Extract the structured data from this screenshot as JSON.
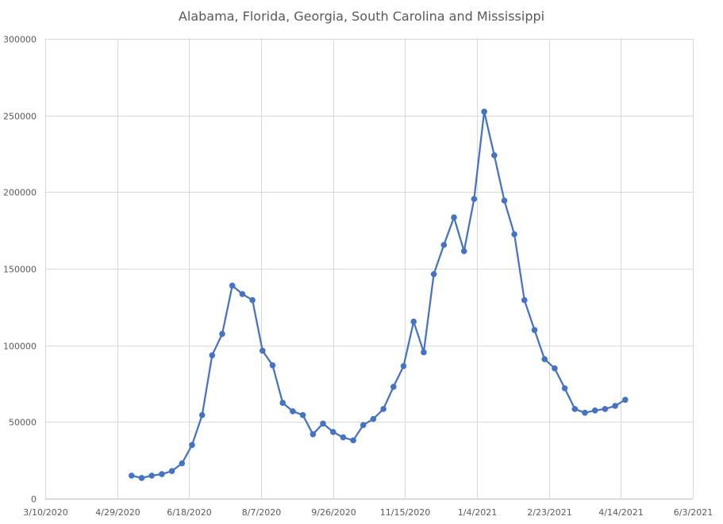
{
  "chart_data": {
    "type": "line",
    "title": "Alabama, Florida, Georgia, South Carolina and Mississippi",
    "xlabel": "",
    "ylabel": "",
    "grid": true,
    "legend": "none",
    "color": "#4472C4",
    "ylim": [
      0,
      300000
    ],
    "yticks": [
      0,
      50000,
      100000,
      150000,
      200000,
      250000,
      300000
    ],
    "ytick_labels": [
      "0",
      "50000",
      "100000",
      "150000",
      "200000",
      "250000",
      "300000"
    ],
    "xlim": [
      "2020-03-10",
      "2021-06-03"
    ],
    "xticks": [
      "2020-03-10",
      "2020-04-29",
      "2020-06-18",
      "2020-08-07",
      "2020-09-26",
      "2020-11-15",
      "2021-01-04",
      "2021-02-23",
      "2021-04-14",
      "2021-06-03"
    ],
    "xtick_labels": [
      "3/10/2020",
      "4/29/2020",
      "6/18/2020",
      "8/7/2020",
      "9/26/2020",
      "11/15/2020",
      "1/4/2021",
      "2/23/2021",
      "4/14/2021",
      "6/3/2021"
    ],
    "series": [
      {
        "x": [
          "2020-05-09",
          "2020-05-16",
          "2020-05-23",
          "2020-05-30",
          "2020-06-06",
          "2020-06-13",
          "2020-06-20",
          "2020-06-27",
          "2020-07-04",
          "2020-07-11",
          "2020-07-18",
          "2020-07-25",
          "2020-08-01",
          "2020-08-08",
          "2020-08-15",
          "2020-08-22",
          "2020-08-29",
          "2020-09-05",
          "2020-09-12",
          "2020-09-19",
          "2020-09-26",
          "2020-10-03",
          "2020-10-10",
          "2020-10-17",
          "2020-10-24",
          "2020-10-31",
          "2020-11-07",
          "2020-11-14",
          "2020-11-21",
          "2020-11-28",
          "2020-12-05",
          "2020-12-12",
          "2020-12-19",
          "2020-12-26",
          "2021-01-02",
          "2021-01-09",
          "2021-01-16",
          "2021-01-23",
          "2021-01-30",
          "2021-02-06",
          "2021-02-13",
          "2021-02-20",
          "2021-02-27",
          "2021-03-06",
          "2021-03-13",
          "2021-03-20",
          "2021-03-27",
          "2021-04-03",
          "2021-04-10",
          "2021-04-17"
        ],
        "y": [
          15000,
          13500,
          15000,
          16000,
          18000,
          23000,
          35000,
          54500,
          93500,
          107500,
          139000,
          133500,
          129500,
          96500,
          87000,
          62500,
          57000,
          54500,
          42000,
          49000,
          43500,
          40000,
          38000,
          48000,
          52000,
          58500,
          73000,
          86500,
          115500,
          95500,
          146500,
          165500,
          183500,
          161500,
          195500,
          252500,
          224000,
          194500,
          172500,
          129500,
          110000,
          91000,
          85000,
          72000,
          58500,
          56000,
          57500,
          58500,
          60500,
          64500
        ]
      }
    ]
  }
}
